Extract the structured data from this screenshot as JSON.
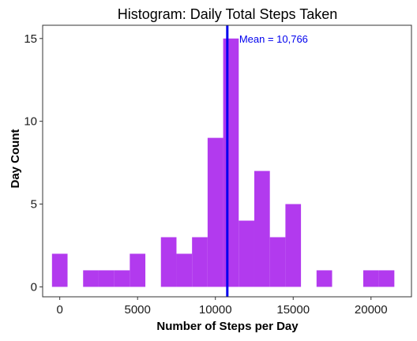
{
  "chart_data": {
    "type": "bar",
    "title": "Histogram: Daily Total Steps Taken",
    "xlabel": "Number of Steps per Day",
    "ylabel": "Day Count",
    "xlim": [
      -1100,
      22600
    ],
    "ylim": [
      -0.6,
      15.8
    ],
    "x_ticks": [
      0,
      5000,
      10000,
      15000,
      20000
    ],
    "y_ticks": [
      0,
      5,
      10,
      15
    ],
    "bin_width": 1000,
    "bins": [
      {
        "x0": -500,
        "x1": 500,
        "count": 2
      },
      {
        "x0": 500,
        "x1": 1500,
        "count": 0
      },
      {
        "x0": 1500,
        "x1": 2500,
        "count": 1
      },
      {
        "x0": 2500,
        "x1": 3500,
        "count": 1
      },
      {
        "x0": 3500,
        "x1": 4500,
        "count": 1
      },
      {
        "x0": 4500,
        "x1": 5500,
        "count": 2
      },
      {
        "x0": 5500,
        "x1": 6500,
        "count": 0
      },
      {
        "x0": 6500,
        "x1": 7500,
        "count": 3
      },
      {
        "x0": 7500,
        "x1": 8500,
        "count": 2
      },
      {
        "x0": 8500,
        "x1": 9500,
        "count": 3
      },
      {
        "x0": 9500,
        "x1": 10500,
        "count": 9
      },
      {
        "x0": 10500,
        "x1": 11500,
        "count": 15
      },
      {
        "x0": 11500,
        "x1": 12500,
        "count": 4
      },
      {
        "x0": 12500,
        "x1": 13500,
        "count": 7
      },
      {
        "x0": 13500,
        "x1": 14500,
        "count": 3
      },
      {
        "x0": 14500,
        "x1": 15500,
        "count": 5
      },
      {
        "x0": 15500,
        "x1": 16500,
        "count": 0
      },
      {
        "x0": 16500,
        "x1": 17500,
        "count": 1
      },
      {
        "x0": 17500,
        "x1": 18500,
        "count": 0
      },
      {
        "x0": 18500,
        "x1": 19500,
        "count": 0
      },
      {
        "x0": 19500,
        "x1": 20500,
        "count": 1
      },
      {
        "x0": 20500,
        "x1": 21500,
        "count": 1
      }
    ],
    "mean_line": {
      "value": 10766,
      "label": "Mean = 10,766"
    },
    "colors": {
      "bar": "#b23aee",
      "mean_line": "#0000ee",
      "axis": "#333333"
    },
    "grid": false,
    "legend": "none"
  }
}
